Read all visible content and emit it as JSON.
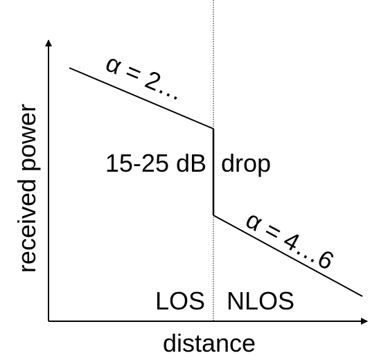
{
  "diagram": {
    "y_axis_label": "received power",
    "x_axis_label": "distance",
    "los_slope_label": "α = 2…",
    "nlos_slope_label": "α = 4…6",
    "drop_value_label": "15-25 dB",
    "drop_word_label": "drop",
    "los_region_label": "LOS",
    "nlos_region_label": "NLOS"
  },
  "colors": {
    "line": "#000000",
    "background": "#ffffff"
  }
}
